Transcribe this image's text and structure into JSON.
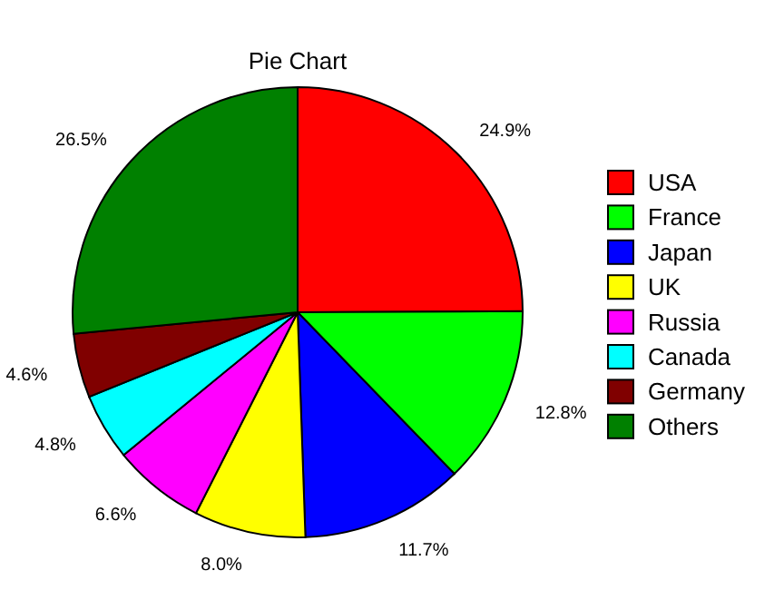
{
  "chart_data": {
    "type": "pie",
    "title": "Pie Chart",
    "categories": [
      "USA",
      "France",
      "Japan",
      "UK",
      "Russia",
      "Canada",
      "Germany",
      "Others"
    ],
    "values": [
      24.9,
      12.8,
      11.7,
      8.0,
      6.6,
      4.8,
      4.6,
      26.5
    ],
    "value_labels": [
      "24.9%",
      "12.8%",
      "11.7%",
      "8.0%",
      "6.6%",
      "4.8%",
      "4.6%",
      "26.5%"
    ],
    "colors": [
      "#ff0000",
      "#00ff00",
      "#0000ff",
      "#ffff00",
      "#ff00ff",
      "#00ffff",
      "#800000",
      "#008000"
    ],
    "legend": "right"
  }
}
